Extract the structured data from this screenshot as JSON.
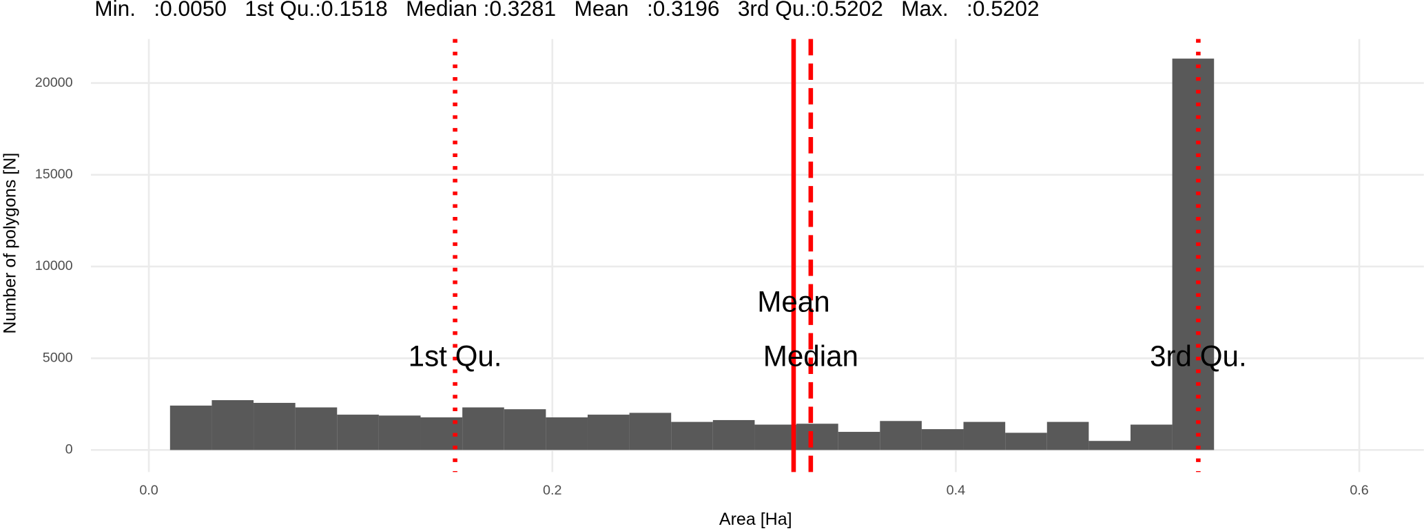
{
  "chart_data": {
    "type": "histogram",
    "subtitle": "Min.   :0.0050   1st Qu.:0.1518   Median :0.3281   Mean   :0.3196   3rd Qu.:0.5202   Max.   :0.5202",
    "x_label": "Area [Ha]",
    "y_label": "Number of polygons [N]",
    "bins": [
      0.0105,
      0.0312,
      0.0519,
      0.0726,
      0.0933,
      0.114,
      0.1347,
      0.1554,
      0.1761,
      0.1968,
      0.2175,
      0.2382,
      0.2589,
      0.2796,
      0.3003,
      0.321,
      0.3417,
      0.3624,
      0.3831,
      0.4038,
      0.4245,
      0.4452,
      0.4659,
      0.4866,
      0.5073,
      0.528
    ],
    "values": [
      2420,
      2716,
      2568,
      2321,
      1926,
      1877,
      1778,
      2321,
      2222,
      1778,
      1926,
      2025,
      1531,
      1630,
      1383,
      1432,
      988,
      1580,
      1136,
      1531,
      938,
      1531,
      494,
      1383,
      21333
    ],
    "color": "#595959",
    "vlines": [
      {
        "label": "1st Qu.",
        "x": 0.1518,
        "style": "dotted",
        "label_y": 5000
      },
      {
        "label": "Mean",
        "x": 0.3196,
        "style": "solid",
        "label_y": 7950
      },
      {
        "label": "Median",
        "x": 0.3281,
        "style": "dashed",
        "label_y": 5000
      },
      {
        "label": "3rd Qu.",
        "x": 0.5202,
        "style": "dotted",
        "label_y": 5000
      }
    ],
    "vline_color": "#ff0000",
    "xlim": [
      -0.0287,
      0.632
    ],
    "ylim": [
      -1200,
      22400
    ],
    "xticks": [
      {
        "value": 0,
        "label": "0.0"
      },
      0.2,
      0.4,
      0.6
    ],
    "yticks": [
      0,
      5000,
      10000,
      15000,
      20000
    ],
    "grid": true
  }
}
